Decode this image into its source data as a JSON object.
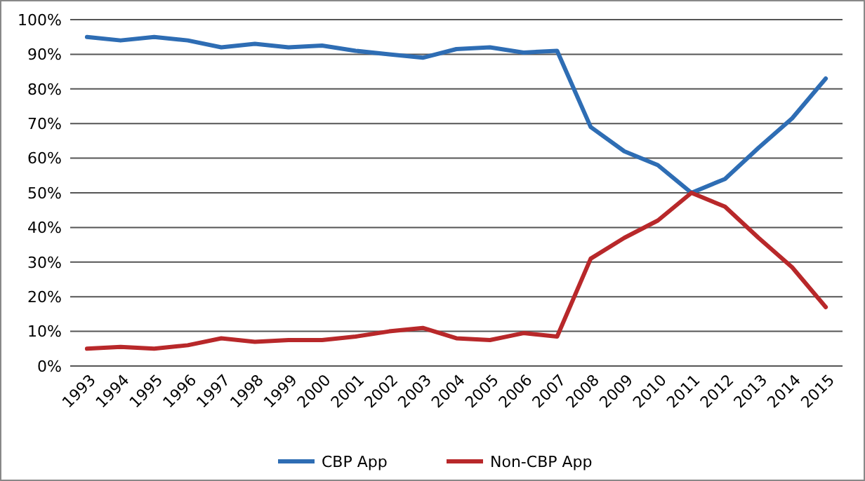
{
  "chart_data": {
    "type": "line",
    "categories": [
      "1993",
      "1994",
      "1995",
      "1996",
      "1997",
      "1998",
      "1999",
      "2000",
      "2001",
      "2002",
      "2003",
      "2004",
      "2005",
      "2006",
      "2007",
      "2008",
      "2009",
      "2010",
      "2011",
      "2012",
      "2013",
      "2014",
      "2015"
    ],
    "series": [
      {
        "name": "CBP App",
        "color": "#2e6db4",
        "values": [
          95,
          94,
          95,
          94,
          92,
          93,
          92,
          92.5,
          91,
          90,
          89,
          91.5,
          92,
          90.5,
          91,
          69,
          62,
          58,
          50,
          54,
          63,
          71.5,
          83
        ]
      },
      {
        "name": "Non-CBP App",
        "color": "#b8282a",
        "values": [
          5,
          5.5,
          5,
          6,
          8,
          7,
          7.5,
          7.5,
          8.5,
          10,
          11,
          8,
          7.5,
          9.5,
          8.5,
          31,
          37,
          42,
          50,
          46,
          37,
          28.5,
          17
        ]
      }
    ],
    "ylim": [
      0,
      100
    ],
    "yticks": [
      {
        "value": 0,
        "label": "0%"
      },
      {
        "value": 10,
        "label": "10%"
      },
      {
        "value": 20,
        "label": "20%"
      },
      {
        "value": 30,
        "label": "30%"
      },
      {
        "value": 40,
        "label": "40%"
      },
      {
        "value": 50,
        "label": "50%"
      },
      {
        "value": 60,
        "label": "60%"
      },
      {
        "value": 70,
        "label": "70%"
      },
      {
        "value": 80,
        "label": "80%"
      },
      {
        "value": 90,
        "label": "90%"
      },
      {
        "value": 100,
        "label": "100%"
      }
    ],
    "grid": "y",
    "legend": "bottom",
    "marker": "none",
    "line_style": "solid"
  }
}
